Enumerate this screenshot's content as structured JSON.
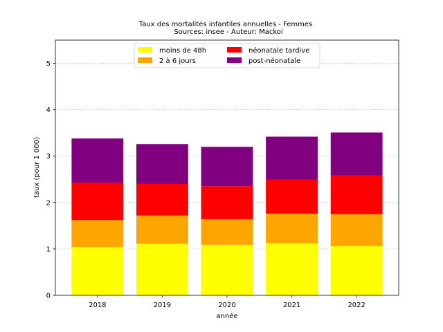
{
  "chart_data": {
    "type": "bar",
    "stacked": true,
    "title": "Taux des mortalités infantiles annuelles - Femmes",
    "subtitle": "Sources: insee - Auteur: Mackoi",
    "xlabel": "année",
    "ylabel": "taux (pour 1 000)",
    "categories": [
      "2018",
      "2019",
      "2020",
      "2021",
      "2022"
    ],
    "ylim": [
      0,
      5.5
    ],
    "yticks": [
      0,
      1,
      2,
      3,
      4,
      5
    ],
    "grid": "y-dotted",
    "legend_position": "top-center",
    "series": [
      {
        "name": "moins de 48h",
        "color": "#ffff00",
        "values": [
          1.04,
          1.11,
          1.09,
          1.12,
          1.06
        ]
      },
      {
        "name": "2 à 6 jours",
        "color": "#ffa500",
        "values": [
          0.58,
          0.61,
          0.55,
          0.64,
          0.69
        ]
      },
      {
        "name": "néonatale tardive",
        "color": "#ff0000",
        "values": [
          0.81,
          0.68,
          0.71,
          0.73,
          0.83
        ]
      },
      {
        "name": "post-néonatale",
        "color": "#800080",
        "values": [
          0.95,
          0.86,
          0.85,
          0.93,
          0.93
        ]
      }
    ]
  }
}
